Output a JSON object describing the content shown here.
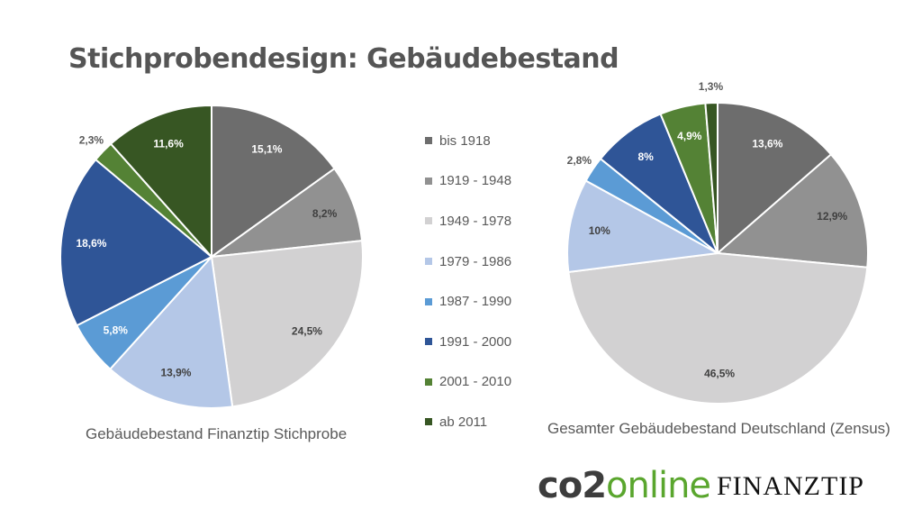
{
  "title": "Stichprobendesign: Gebäudebestand",
  "categories": [
    "bis 1918",
    "1919 - 1948",
    "1949 - 1978",
    "1979 - 1986",
    "1987 - 1990",
    "1991 - 2000",
    "2001 - 2010",
    "ab 2011"
  ],
  "colors": [
    "#6d6d6d",
    "#919191",
    "#d2d1d2",
    "#b4c7e7",
    "#5b9bd5",
    "#2f5597",
    "#548235",
    "#375623"
  ],
  "chart_data": [
    {
      "type": "pie",
      "caption": "Gebäudebestand Finanztip Stichprobe",
      "values": [
        15.1,
        8.2,
        24.5,
        13.9,
        5.8,
        18.6,
        2.3,
        11.6
      ],
      "labels": [
        "15,1%",
        "8,2%",
        "24,5%",
        "13,9%",
        "5,8%",
        "18,6%",
        "2,3%",
        "11,6%"
      ]
    },
    {
      "type": "pie",
      "caption": "Gesamter Gebäudebestand Deutschland (Zensus)",
      "values": [
        13.6,
        12.9,
        46.5,
        10,
        2.8,
        8,
        4.9,
        1.3
      ],
      "labels": [
        "13,6%",
        "12,9%",
        "46,5%",
        "10%",
        "2,8%",
        "8%",
        "4,9%",
        "1,3%"
      ]
    }
  ],
  "logos": {
    "co2_main": "co2",
    "co2_accent": "online",
    "finanztip": "FINANZTIP"
  }
}
